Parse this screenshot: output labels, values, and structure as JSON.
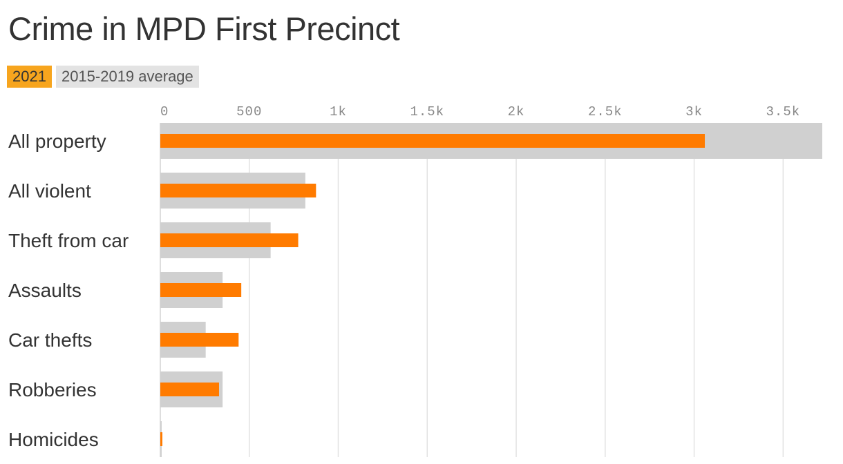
{
  "chart_data": {
    "type": "bar",
    "orientation": "horizontal",
    "title": "Crime in MPD First Precinct",
    "categories": [
      "All property",
      "All violent",
      "Theft from car",
      "Assaults",
      "Car thefts",
      "Robberies",
      "Homicides"
    ],
    "series": [
      {
        "name": "2021",
        "values": [
          3060,
          875,
          775,
          455,
          440,
          330,
          8
        ],
        "color": "#ff7b00"
      },
      {
        "name": "2015-2019 average",
        "values": [
          3720,
          815,
          620,
          350,
          255,
          350,
          5
        ],
        "color": "#d0d0d0"
      }
    ],
    "x_ticks": [
      0,
      500,
      1000,
      1500,
      2000,
      2500,
      3000,
      3500
    ],
    "x_tick_labels": [
      "0",
      "500",
      "1k",
      "1.5k",
      "2k",
      "2.5k",
      "3k",
      "3.5k"
    ],
    "xlim": [
      0,
      3720
    ],
    "grid": true,
    "legend_placement": "top-left"
  }
}
